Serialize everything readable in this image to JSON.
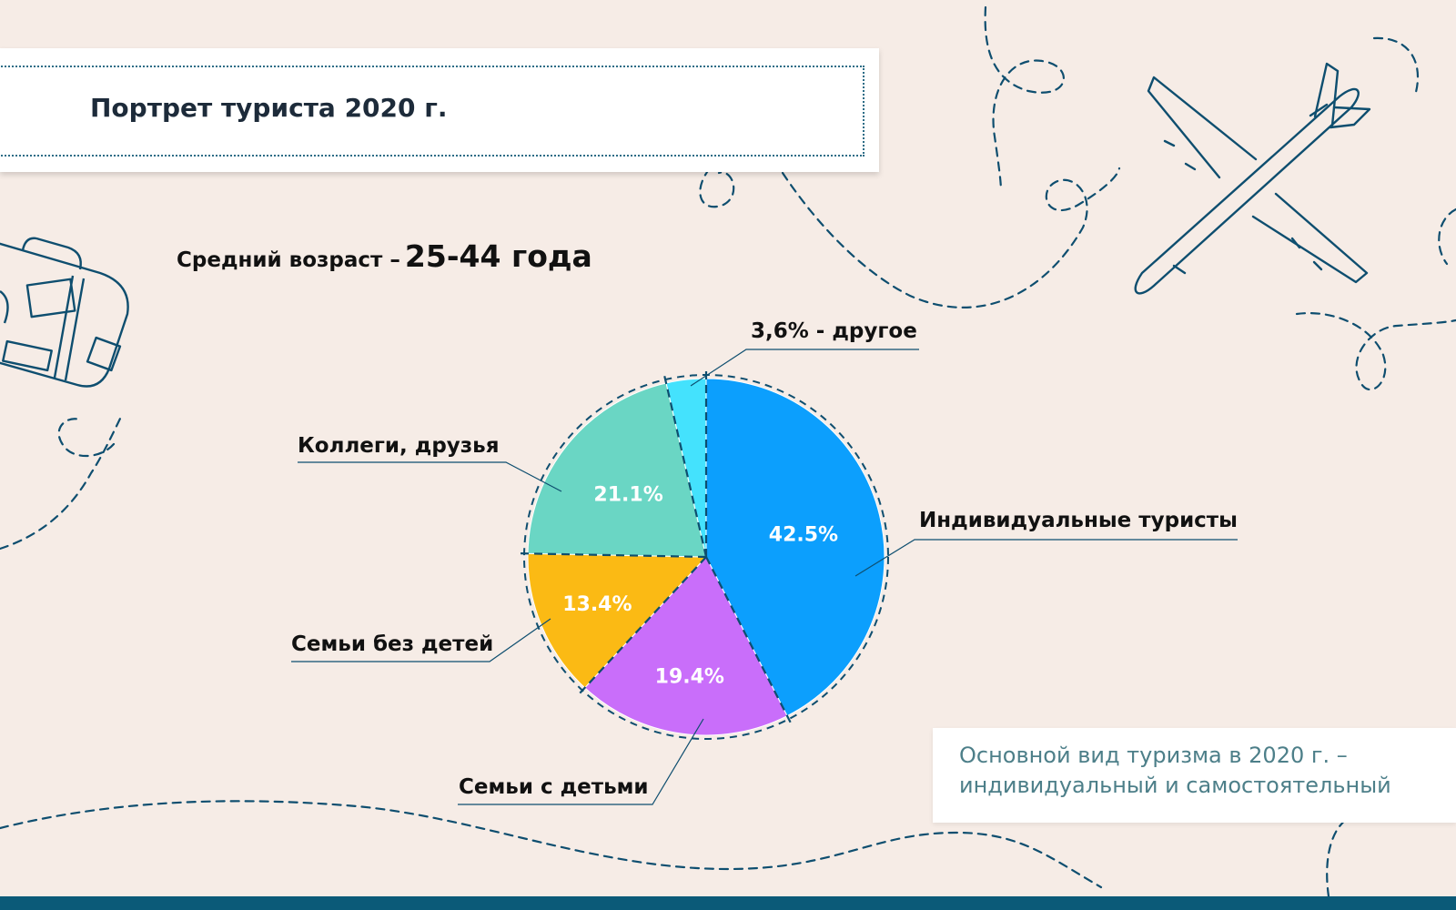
{
  "title": "Портрет туриста 2020 г.",
  "age": {
    "label": "Средний возраст –",
    "value": "25-44 года"
  },
  "note": "Основной вид туризма в 2020 г. – индивидуальный и самостоятельный",
  "colors": {
    "background": "#f6ece6",
    "line": "#0e4e6f",
    "bottom_bar": "#0b5a78"
  },
  "chart_data": {
    "type": "pie",
    "start": "top, clockwise",
    "slices": [
      {
        "name": "Индивидуальные туристы",
        "value": 42.5,
        "value_label": "42.5%",
        "color": "#0c9ffd"
      },
      {
        "name": "Семьи с детьми",
        "value": 19.4,
        "value_label": "19.4%",
        "color": "#c96efa"
      },
      {
        "name": "Семьи без детей",
        "value": 13.4,
        "value_label": "13.4%",
        "color": "#fbba14"
      },
      {
        "name": "Коллеги, друзья",
        "value": 21.1,
        "value_label": "21.1%",
        "color": "#6ad6c4"
      },
      {
        "name": "3,6% - другое",
        "value": 3.6,
        "value_label": "",
        "color": "#44e2fd"
      }
    ]
  }
}
